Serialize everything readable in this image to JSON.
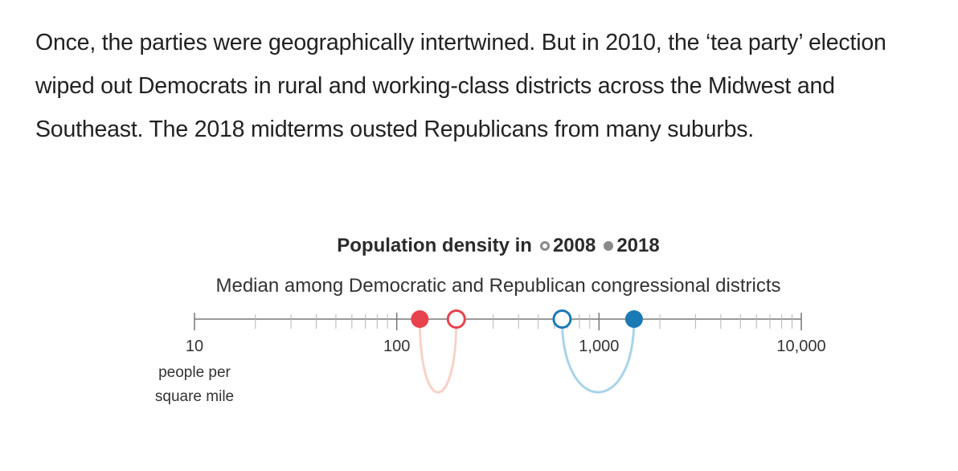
{
  "intro_text": "Once, the parties were geographically intertwined. But in 2010, the ‘tea party’ election wiped out Democrats in rural and working-class districts across the Midwest and Southeast. The 2018 midterms ousted Republicans from many suburbs.",
  "chart_data": {
    "type": "scatter",
    "title": "Population density in",
    "legend": [
      {
        "label": "2008",
        "marker": "open"
      },
      {
        "label": "2018",
        "marker": "filled"
      }
    ],
    "subtitle": "Median among Democratic and Republican congressional districts",
    "x_scale": "log",
    "xlim": [
      10,
      10000
    ],
    "ticks": [
      {
        "value": 10,
        "label": "10"
      },
      {
        "value": 100,
        "label": "100"
      },
      {
        "value": 1000,
        "label": "1,000"
      },
      {
        "value": 10000,
        "label": "10,000"
      }
    ],
    "unit_label": [
      "people per",
      "square mile"
    ],
    "series": [
      {
        "color": "#e8424e",
        "arc_color": "#f7d2c9",
        "x_2008": 197,
        "x_2018": 130
      },
      {
        "color": "#1a7ab5",
        "arc_color": "#a9d3ea",
        "x_2008": 657,
        "x_2018": 1490
      }
    ]
  }
}
